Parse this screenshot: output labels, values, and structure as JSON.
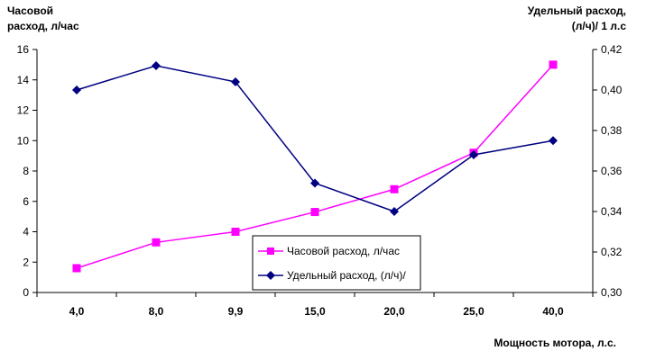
{
  "chart_data": {
    "type": "line",
    "categories": [
      "4,0",
      "8,0",
      "9,9",
      "15,0",
      "20,0",
      "25,0",
      "40,0"
    ],
    "xlabel": "Мощность мотора, л.с.",
    "ylabel_left": [
      "Часовой",
      "расход, л/час"
    ],
    "ylabel_right": [
      "Удельный расход,",
      "(л/ч)/ 1 л.с"
    ],
    "ylim_left": [
      0,
      16
    ],
    "yticks_left": [
      "0",
      "2",
      "4",
      "6",
      "8",
      "10",
      "12",
      "14",
      "16"
    ],
    "ylim_right": [
      0.3,
      0.42
    ],
    "yticks_right": [
      "0,30",
      "0,32",
      "0,34",
      "0,36",
      "0,38",
      "0,40",
      "0,42"
    ],
    "grid": false,
    "legend_position": "bottom-center",
    "series": [
      {
        "name": "Часовой расход, л/час",
        "axis": "left",
        "marker": "square",
        "color": "#ff00ff",
        "values": [
          1.6,
          3.3,
          4.0,
          5.3,
          6.8,
          9.2,
          15.0
        ]
      },
      {
        "name": "Удельный расход, (л/ч)/",
        "axis": "right",
        "marker": "diamond",
        "color": "#000080",
        "values": [
          0.4,
          0.412,
          0.404,
          0.354,
          0.34,
          0.368,
          0.375
        ]
      }
    ]
  }
}
